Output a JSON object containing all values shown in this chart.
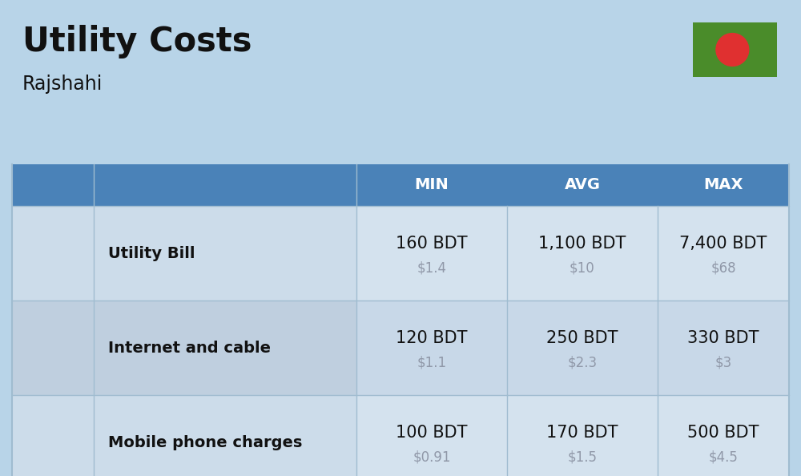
{
  "title": "Utility Costs",
  "subtitle": "Rajshahi",
  "bg_color": "#b8d4e8",
  "header_bg": "#4a82b8",
  "header_text_color": "#ffffff",
  "row_bg_1": "#ccdcea",
  "row_bg_2": "#bfcfdf",
  "cell_bg_1": "#d4e2ee",
  "cell_bg_2": "#c8d8e8",
  "separator_color": "#a0bcd0",
  "text_color_dark": "#111111",
  "text_color_gray": "#9098a8",
  "flag_green": "#4a8c2a",
  "flag_red": "#e03030",
  "columns": [
    "MIN",
    "AVG",
    "MAX"
  ],
  "rows": [
    {
      "label": "Utility Bill",
      "min_bdt": "160 BDT",
      "min_usd": "$1.4",
      "avg_bdt": "1,100 BDT",
      "avg_usd": "$10",
      "max_bdt": "7,400 BDT",
      "max_usd": "$68"
    },
    {
      "label": "Internet and cable",
      "min_bdt": "120 BDT",
      "min_usd": "$1.1",
      "avg_bdt": "250 BDT",
      "avg_usd": "$2.3",
      "max_bdt": "330 BDT",
      "max_usd": "$3"
    },
    {
      "label": "Mobile phone charges",
      "min_bdt": "100 BDT",
      "min_usd": "$0.91",
      "avg_bdt": "170 BDT",
      "avg_usd": "$1.5",
      "max_bdt": "500 BDT",
      "max_usd": "$4.5"
    }
  ],
  "title_fontsize": 30,
  "subtitle_fontsize": 17,
  "header_fontsize": 14,
  "label_fontsize": 14,
  "value_fontsize": 15,
  "usd_fontsize": 12
}
